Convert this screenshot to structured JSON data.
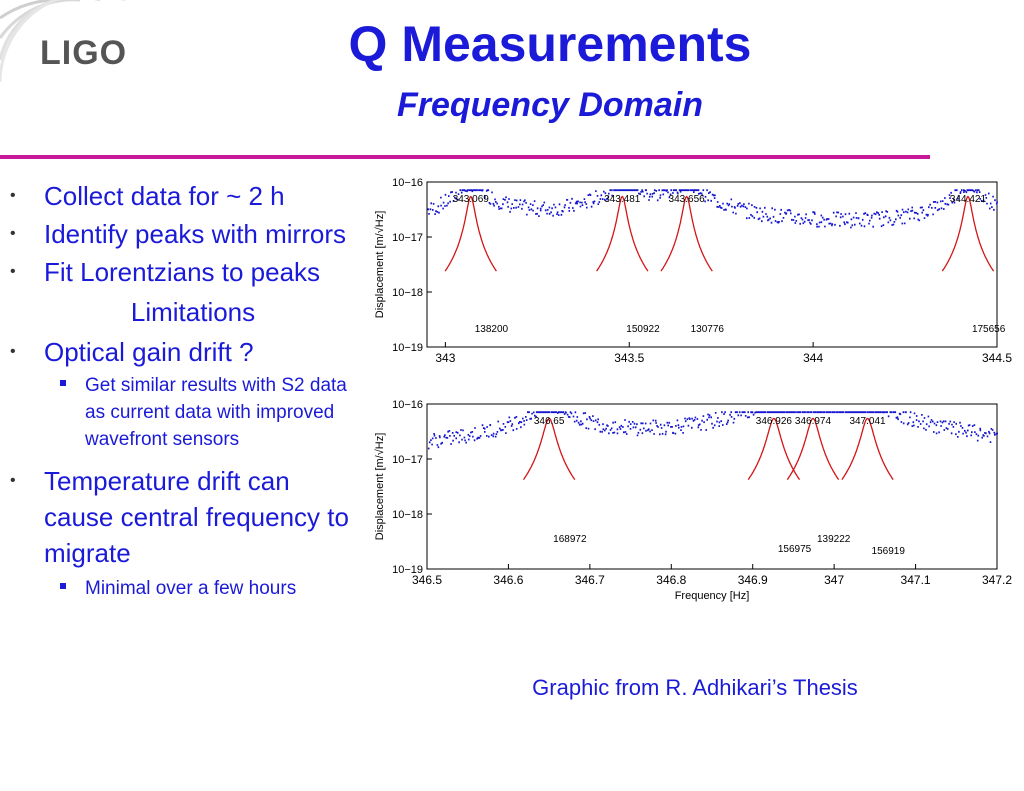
{
  "logo": {
    "text": "LIGO"
  },
  "title": "Q Measurements",
  "subtitle": "Frequency Domain",
  "bullets": {
    "b1": "Collect data for ~ 2 h",
    "b2": "Identify peaks with mirrors",
    "b3": "Fit Lorentzians to peaks",
    "limitations": "Limitations",
    "b4": "Optical gain drift ?",
    "b4_sub": "Get similar results with S2 data as current data with improved wavefront sensors",
    "b5": "Temperature drift can cause central frequency to migrate",
    "b5_sub": "Minimal over a few hours"
  },
  "caption": "Graphic from R. Adhikari’s Thesis",
  "colors": {
    "accent": "#1a1ad8",
    "rule": "#c8189a",
    "data": "#1515d0",
    "fit": "#d41515"
  },
  "chart_data": [
    {
      "type": "line",
      "title": "",
      "xlabel": "",
      "ylabel": "Displacement [m/√Hz]",
      "xlim": [
        342.95,
        344.5
      ],
      "ylim_exponent": [
        -19,
        -16
      ],
      "x_ticks": [
        "343",
        "343.5",
        "344",
        "344.5"
      ],
      "x_tick_values": [
        343,
        343.5,
        344,
        344.5
      ],
      "y_ticks": [
        "10−16",
        "10−17",
        "10−18",
        "10−19"
      ],
      "series": [
        {
          "name": "measured spectrum",
          "style": "dots"
        },
        {
          "name": "Lorentzian fits",
          "style": "line"
        }
      ],
      "peaks": [
        {
          "freq": 343.069,
          "label": "343.069",
          "q": "138200"
        },
        {
          "freq": 343.481,
          "label": "343.481",
          "q": "150922"
        },
        {
          "freq": 343.656,
          "label": "343.656",
          "q": "130776"
        },
        {
          "freq": 344.421,
          "label": "344.421",
          "q": "175656"
        }
      ]
    },
    {
      "type": "line",
      "title": "",
      "xlabel": "Frequency [Hz]",
      "ylabel": "Displacement [m/√Hz]",
      "xlim": [
        346.5,
        347.2
      ],
      "ylim_exponent": [
        -19,
        -16
      ],
      "x_ticks": [
        "346.5",
        "346.6",
        "346.7",
        "346.8",
        "346.9",
        "347",
        "347.1",
        "347.2"
      ],
      "x_tick_values": [
        346.5,
        346.6,
        346.7,
        346.8,
        346.9,
        347.0,
        347.1,
        347.2
      ],
      "y_ticks": [
        "10−16",
        "10−17",
        "10−18",
        "10−19"
      ],
      "series": [
        {
          "name": "measured spectrum",
          "style": "dots"
        },
        {
          "name": "Lorentzian fits",
          "style": "line"
        }
      ],
      "peaks": [
        {
          "freq": 346.65,
          "label": "346.65",
          "q": "168972"
        },
        {
          "freq": 346.926,
          "label": "346.926",
          "q": "156975"
        },
        {
          "freq": 346.974,
          "label": "346.974",
          "q": "139222"
        },
        {
          "freq": 347.041,
          "label": "347.041",
          "q": "156919"
        }
      ]
    }
  ]
}
